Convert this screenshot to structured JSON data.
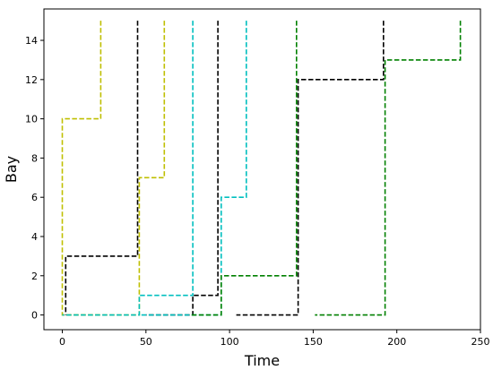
{
  "chart_data": {
    "type": "line",
    "title": "",
    "xlabel": "Time",
    "ylabel": "Bay",
    "xlim": [
      -11,
      250
    ],
    "ylim": [
      -0.75,
      15.6
    ],
    "grid": false,
    "line_style": "dashed",
    "xticks": [
      0,
      50,
      100,
      150,
      200,
      250
    ],
    "yticks": [
      0,
      2,
      4,
      6,
      8,
      10,
      12,
      14
    ],
    "series": [
      {
        "color": "#bfbf00",
        "x": [
          23,
          23,
          0,
          0,
          23
        ],
        "y": [
          15,
          10,
          10,
          0,
          0
        ]
      },
      {
        "color": "#bfbf00",
        "x": [
          61,
          61,
          46,
          46,
          0
        ],
        "y": [
          15,
          7,
          7,
          0,
          0
        ]
      },
      {
        "color": "#000000",
        "x": [
          45,
          45,
          2,
          2
        ],
        "y": [
          15,
          3,
          3,
          0
        ]
      },
      {
        "color": "#000000",
        "x": [
          93,
          93,
          78,
          78,
          50
        ],
        "y": [
          15,
          1,
          1,
          0,
          0
        ]
      },
      {
        "color": "#000000",
        "x": [
          192,
          192,
          141,
          141,
          104
        ],
        "y": [
          15,
          12,
          12,
          0,
          0
        ]
      },
      {
        "color": "#00bfbf",
        "x": [
          78,
          78,
          46,
          46,
          0
        ],
        "y": [
          15,
          1,
          1,
          0,
          0
        ]
      },
      {
        "color": "#00bfbf",
        "x": [
          110,
          110,
          95,
          95,
          46
        ],
        "y": [
          15,
          6,
          6,
          0,
          0
        ]
      },
      {
        "color": "#008000",
        "x": [
          140,
          140,
          95,
          95,
          77
        ],
        "y": [
          15,
          2,
          2,
          0,
          0
        ]
      },
      {
        "color": "#008000",
        "x": [
          238,
          238,
          193,
          193,
          151
        ],
        "y": [
          15,
          13,
          13,
          0,
          0
        ]
      }
    ]
  }
}
